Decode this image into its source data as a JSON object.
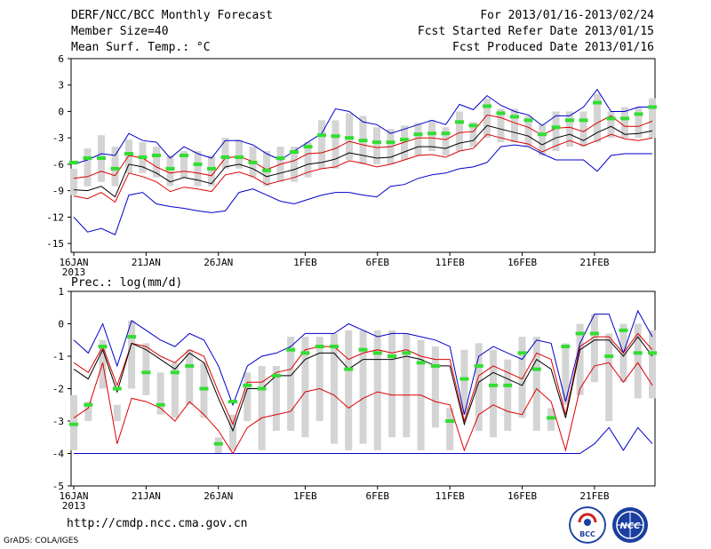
{
  "header": {
    "title": "DERF/NCC/BCC Monthly Forecast",
    "member_size": "Member Size=40",
    "var1_label": "Mean Surf. Temp.: °C",
    "period": "For 2013/01/16-2013/02/24",
    "fcst_start": "Fcst Started Refer Date 2013/01/15",
    "fcst_produced": "Fcst Produced Date 2013/01/16"
  },
  "footer": {
    "url": "http://cmdp.ncc.cma.gov.cn",
    "credit": "GrADS: COLA/IGES",
    "logo_bcc": "BCC",
    "logo_ncc": "NCC"
  },
  "colors": {
    "ensemble_mean": "#000000",
    "spread": "#dd0000",
    "extreme": "#0000cc",
    "observed": "#33dd33",
    "box": "#d4d4d4"
  },
  "chart_data": [
    {
      "type": "line",
      "title": "Mean Surf. Temp.: °C",
      "ylabel": "°C",
      "ylim": [
        -16,
        6
      ],
      "yticks": [
        6,
        3,
        0,
        -3,
        -6,
        -9,
        -12,
        -15
      ],
      "x_day_start": 16,
      "x_day_end": 56,
      "xtick_days": [
        16,
        21,
        26,
        32,
        37,
        42,
        47,
        52
      ],
      "xtick_labels": [
        "16JAN",
        "21JAN",
        "26JAN",
        "1FEB",
        "6FEB",
        "11FEB",
        "16FEB",
        "21FEB"
      ],
      "year_label": "2013",
      "series": [
        {
          "name": "mean",
          "values": [
            -8.9,
            -9.0,
            -8.5,
            -9.7,
            -6.0,
            -6.3,
            -7.0,
            -8.0,
            -7.5,
            -7.8,
            -8.2,
            -6.3,
            -6.0,
            -6.5,
            -7.4,
            -7.0,
            -6.6,
            -6.0,
            -5.8,
            -5.4,
            -4.7,
            -5.0,
            -5.3,
            -5.2,
            -4.6,
            -4.0,
            -4.0,
            -4.2,
            -3.6,
            -3.3,
            -1.6,
            -2.0,
            -2.4,
            -2.8,
            -3.8,
            -3.0,
            -2.6,
            -3.3,
            -2.4,
            -1.7,
            -2.6,
            -2.5,
            -2.2
          ]
        },
        {
          "name": "upper",
          "values": [
            -7.6,
            -7.4,
            -6.8,
            -7.3,
            -5.0,
            -5.3,
            -6.3,
            -7.0,
            -6.8,
            -7.0,
            -7.3,
            -5.3,
            -5.1,
            -5.7,
            -6.6,
            -6.0,
            -5.6,
            -4.8,
            -4.7,
            -4.2,
            -3.4,
            -3.8,
            -4.1,
            -4.0,
            -3.5,
            -3.0,
            -3.0,
            -3.2,
            -2.4,
            -2.3,
            -0.4,
            -0.7,
            -1.3,
            -1.8,
            -2.7,
            -1.9,
            -1.8,
            -2.3,
            -1.3,
            -0.5,
            -1.7,
            -1.7,
            -1.1
          ]
        },
        {
          "name": "lower",
          "values": [
            -9.6,
            -9.9,
            -9.2,
            -10.3,
            -7.0,
            -7.4,
            -8.0,
            -9.1,
            -8.6,
            -8.8,
            -9.1,
            -7.2,
            -6.9,
            -7.4,
            -8.3,
            -7.9,
            -7.5,
            -6.9,
            -6.5,
            -6.3,
            -5.6,
            -5.9,
            -6.3,
            -6.0,
            -5.5,
            -5.0,
            -4.9,
            -5.2,
            -4.5,
            -4.2,
            -2.6,
            -3.0,
            -3.4,
            -3.7,
            -4.6,
            -3.9,
            -3.3,
            -3.9,
            -3.3,
            -2.6,
            -3.1,
            -3.3,
            -3.0
          ]
        },
        {
          "name": "max",
          "values": [
            -6.0,
            -5.5,
            -4.8,
            -5.0,
            -2.5,
            -3.3,
            -3.5,
            -5.3,
            -4.0,
            -4.8,
            -5.3,
            -3.3,
            -3.3,
            -3.8,
            -4.8,
            -5.5,
            -4.5,
            -3.5,
            -2.5,
            0.3,
            0.0,
            -1.2,
            -1.5,
            -2.5,
            -2.0,
            -1.5,
            -1.0,
            -1.5,
            0.8,
            0.2,
            1.8,
            0.7,
            0.0,
            -0.4,
            -1.6,
            -0.5,
            -0.5,
            0.5,
            2.5,
            0.0,
            0.0,
            0.5,
            0.5
          ]
        },
        {
          "name": "min",
          "values": [
            -12.0,
            -13.7,
            -13.3,
            -14.0,
            -9.5,
            -9.2,
            -10.5,
            -10.8,
            -11.0,
            -11.3,
            -11.5,
            -11.3,
            -9.2,
            -8.8,
            -9.5,
            -10.2,
            -10.5,
            -10.0,
            -9.5,
            -9.2,
            -9.2,
            -9.5,
            -9.7,
            -8.5,
            -8.3,
            -7.6,
            -7.2,
            -7.0,
            -6.5,
            -6.3,
            -5.8,
            -4.0,
            -3.8,
            -4.0,
            -4.8,
            -5.5,
            -5.5,
            -5.5,
            -6.8,
            -5.0,
            -4.8,
            -4.8,
            -4.8
          ]
        },
        {
          "name": "observed",
          "values": [
            -5.8,
            -5.3,
            -5.3,
            -6.5,
            -4.8,
            -5.2,
            -5.0,
            -6.5,
            -5.0,
            -6.0,
            -6.5,
            -5.2,
            -5.2,
            -5.8,
            -6.7,
            -5.3,
            -4.6,
            -4.0,
            -2.7,
            -2.8,
            -3.0,
            -3.3,
            -3.5,
            -3.5,
            -3.2,
            -2.6,
            -2.5,
            -2.5,
            -1.2,
            -1.6,
            0.6,
            -0.2,
            -0.6,
            -1.0,
            -2.6,
            -1.8,
            -1.0,
            -1.0,
            1.0,
            -0.8,
            -0.8,
            -0.3,
            0.5
          ]
        },
        {
          "name": "box_high",
          "values": [
            -6.5,
            -4.2,
            -2.7,
            -4.0,
            -3.2,
            -3.5,
            -4.0,
            -5.0,
            -4.5,
            -4.5,
            -5.0,
            -3.0,
            -3.2,
            -4.0,
            -4.5,
            -4.0,
            -4.0,
            -3.5,
            -1.0,
            -1.0,
            -0.2,
            -0.5,
            -1.8,
            -2.0,
            -1.6,
            -1.3,
            -1.0,
            -1.8,
            0.0,
            -1.2,
            1.5,
            0.3,
            0.3,
            -0.5,
            -1.5,
            0.0,
            0.0,
            0.0,
            2.0,
            0.0,
            0.5,
            0.5,
            1.5
          ]
        },
        {
          "name": "box_low",
          "values": [
            -9.5,
            -8.5,
            -8.0,
            -8.5,
            -7.0,
            -7.0,
            -7.5,
            -8.5,
            -7.5,
            -8.5,
            -8.5,
            -6.5,
            -6.5,
            -7.5,
            -8.5,
            -8.0,
            -8.0,
            -7.5,
            -6.5,
            -6.5,
            -5.5,
            -6.0,
            -6.0,
            -6.0,
            -5.5,
            -5.0,
            -4.5,
            -5.0,
            -4.5,
            -4.0,
            -3.0,
            -3.5,
            -3.5,
            -4.0,
            -5.0,
            -4.5,
            -4.0,
            -4.0,
            -3.5,
            -3.0,
            -3.0,
            -3.0,
            -3.0
          ]
        }
      ]
    },
    {
      "type": "line",
      "title": "Prec.: log(mm/d)",
      "ylabel": "log(mm/d)",
      "ylim": [
        -5,
        1
      ],
      "yticks": [
        1,
        0,
        -1,
        -2,
        -3,
        -4,
        -5
      ],
      "x_day_start": 16,
      "x_day_end": 56,
      "xtick_days": [
        16,
        21,
        26,
        32,
        37,
        42,
        47,
        52
      ],
      "xtick_labels": [
        "16JAN",
        "21JAN",
        "26JAN",
        "1FEB",
        "6FEB",
        "11FEB",
        "16FEB",
        "21FEB"
      ],
      "year_label": "2013",
      "series": [
        {
          "name": "mean",
          "values": [
            -1.4,
            -1.7,
            -0.8,
            -2.1,
            -0.6,
            -0.8,
            -1.1,
            -1.4,
            -0.9,
            -1.2,
            -2.3,
            -3.3,
            -2.0,
            -2.0,
            -1.6,
            -1.6,
            -1.1,
            -0.9,
            -0.9,
            -1.4,
            -1.1,
            -1.1,
            -1.1,
            -1.0,
            -1.1,
            -1.3,
            -1.3,
            -3.1,
            -1.8,
            -1.5,
            -1.7,
            -1.9,
            -1.1,
            -1.4,
            -2.9,
            -0.8,
            -0.5,
            -0.5,
            -1.0,
            -0.4,
            -1.0
          ]
        },
        {
          "name": "upper",
          "values": [
            -1.2,
            -1.5,
            -0.7,
            -1.9,
            -0.6,
            -0.7,
            -1.0,
            -1.2,
            -0.8,
            -1.0,
            -2.1,
            -3.1,
            -1.8,
            -1.8,
            -1.5,
            -1.4,
            -0.8,
            -0.7,
            -0.7,
            -1.1,
            -0.9,
            -0.8,
            -0.9,
            -0.8,
            -1.0,
            -1.1,
            -1.1,
            -3.0,
            -1.6,
            -1.3,
            -1.5,
            -1.7,
            -0.9,
            -1.1,
            -2.8,
            -0.7,
            -0.4,
            -0.4,
            -0.9,
            -0.3,
            -0.8
          ]
        },
        {
          "name": "lower",
          "values": [
            -2.9,
            -2.6,
            -1.2,
            -3.7,
            -2.3,
            -2.4,
            -2.6,
            -3.0,
            -2.4,
            -2.8,
            -3.3,
            -4.0,
            -3.2,
            -2.9,
            -2.8,
            -2.7,
            -2.1,
            -2.0,
            -2.2,
            -2.6,
            -2.3,
            -2.1,
            -2.2,
            -2.2,
            -2.2,
            -2.4,
            -2.5,
            -3.9,
            -2.8,
            -2.5,
            -2.7,
            -2.8,
            -2.0,
            -2.4,
            -3.9,
            -2.0,
            -1.3,
            -1.2,
            -1.8,
            -1.2,
            -1.9
          ]
        },
        {
          "name": "max",
          "values": [
            -0.5,
            -0.9,
            0.0,
            -1.3,
            0.1,
            -0.2,
            -0.5,
            -0.7,
            -0.3,
            -0.5,
            -1.3,
            -2.5,
            -1.3,
            -1.0,
            -0.9,
            -0.7,
            -0.3,
            -0.3,
            -0.3,
            0.0,
            -0.2,
            -0.4,
            -0.3,
            -0.3,
            -0.4,
            -0.5,
            -0.7,
            -2.8,
            -1.0,
            -0.7,
            -0.9,
            -1.1,
            -0.5,
            -0.6,
            -2.4,
            -0.6,
            0.3,
            0.3,
            -0.9,
            0.4,
            -0.4
          ]
        },
        {
          "name": "min",
          "values": [
            -4.0,
            -4.0,
            -4.0,
            -4.0,
            -4.0,
            -4.0,
            -4.0,
            -4.0,
            -4.0,
            -4.0,
            -4.0,
            -4.0,
            -4.0,
            -4.0,
            -4.0,
            -4.0,
            -4.0,
            -4.0,
            -4.0,
            -4.0,
            -4.0,
            -4.0,
            -4.0,
            -4.0,
            -4.0,
            -4.0,
            -4.0,
            -4.0,
            -4.0,
            -4.0,
            -4.0,
            -4.0,
            -4.0,
            -4.0,
            -4.0,
            -4.0,
            -3.7,
            -3.2,
            -3.9,
            -3.2,
            -3.7
          ]
        },
        {
          "name": "observed",
          "values": [
            -3.1,
            -2.5,
            -0.7,
            -2.0,
            -0.4,
            -1.5,
            -2.5,
            -1.5,
            -1.3,
            -2.0,
            -3.7,
            -2.4,
            -1.9,
            -2.0,
            -1.6,
            -0.8,
            -0.9,
            -0.7,
            -0.7,
            -1.4,
            -0.8,
            -0.9,
            -1.0,
            -0.9,
            -1.2,
            -1.3,
            -3.0,
            -1.7,
            -1.3,
            -1.9,
            -1.9,
            -0.9,
            -1.4,
            -2.9,
            -0.7,
            -0.3,
            -0.3,
            -1.0,
            -0.2,
            -0.9,
            -0.9
          ]
        },
        {
          "name": "box_high",
          "values": [
            -2.2,
            -2.4,
            -0.5,
            -2.5,
            0.1,
            -0.6,
            -1.5,
            -1.2,
            -0.8,
            -1.2,
            -3.5,
            -2.8,
            -1.5,
            -1.3,
            -1.3,
            -0.4,
            -0.4,
            -0.4,
            -0.3,
            -0.2,
            -0.2,
            -0.2,
            -0.2,
            -0.3,
            -0.5,
            -0.7,
            -2.6,
            -0.8,
            -0.6,
            -0.8,
            -1.1,
            -0.4,
            -0.4,
            -2.6,
            -0.6,
            0.0,
            0.3,
            -0.3,
            0.0,
            0.0,
            -0.2
          ]
        },
        {
          "name": "box_low",
          "values": [
            -3.9,
            -3.0,
            -2.0,
            -3.0,
            -2.0,
            -2.2,
            -2.8,
            -2.9,
            -2.5,
            -2.9,
            -4.0,
            -3.9,
            -3.0,
            -3.9,
            -3.3,
            -3.3,
            -3.5,
            -3.0,
            -3.7,
            -3.9,
            -3.7,
            -3.9,
            -3.5,
            -3.5,
            -3.9,
            -3.2,
            -3.9,
            -2.8,
            -3.3,
            -3.5,
            -3.3,
            -2.9,
            -3.3,
            -3.3,
            -2.5,
            -2.2,
            -1.8,
            -3.0,
            -1.8,
            -2.3,
            -2.3
          ]
        }
      ]
    }
  ]
}
